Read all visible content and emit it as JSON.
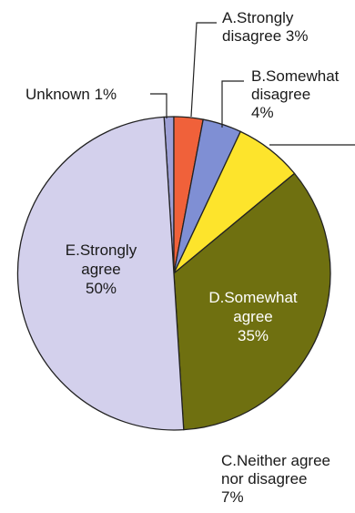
{
  "chart_data": {
    "type": "pie",
    "slices": [
      {
        "key": "unknown",
        "lines": [
          "Unknown 1%"
        ],
        "value": 1,
        "color": "#9ea0d6"
      },
      {
        "key": "a",
        "lines": [
          "A.Strongly",
          "disagree 3%"
        ],
        "value": 3,
        "color": "#f0613a"
      },
      {
        "key": "b",
        "lines": [
          "B.Somewhat",
          "disagree",
          "4%"
        ],
        "value": 4,
        "color": "#7f8fd4"
      },
      {
        "key": "c",
        "lines": [
          "C.Neither agree",
          "nor disagree",
          "7%"
        ],
        "value": 7,
        "color": "#fde42c"
      },
      {
        "key": "d",
        "lines": [
          "D.Somewhat",
          "agree",
          "35%"
        ],
        "value": 35,
        "color": "#6f7010"
      },
      {
        "key": "e",
        "lines": [
          "E.Strongly",
          "agree",
          "50%"
        ],
        "value": 50,
        "color": "#d3d0ec"
      }
    ],
    "start_angle_deg": -3.6,
    "direction": "clockwise",
    "slice_outline": "#222222"
  }
}
